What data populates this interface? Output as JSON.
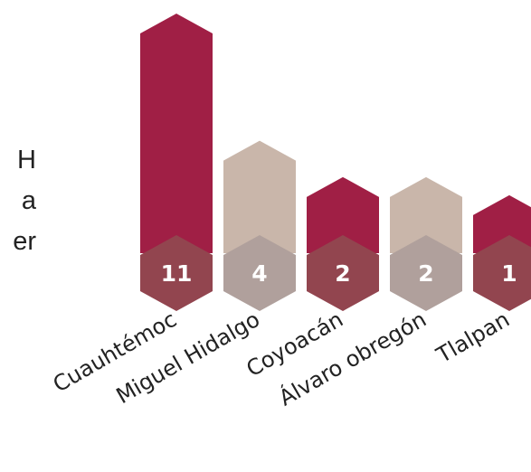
{
  "side_text": [
    "H",
    "a",
    "er"
  ],
  "chart_data": {
    "type": "bar",
    "categories": [
      "Cuauhtémoc",
      "Miguel Hidalgo",
      "Coyoacán",
      "Álvaro obregón",
      "Tlalpan"
    ],
    "values": [
      11,
      4,
      2,
      2,
      1
    ],
    "value_labels": [
      "11",
      "4",
      "2",
      "2",
      "1"
    ],
    "bar_colors": [
      "#a01f45",
      "#c9b6aa",
      "#a01f45",
      "#c9b6aa",
      "#a01f45"
    ],
    "badge_colors": [
      "#92454f",
      "#b0a09c",
      "#92454f",
      "#b0a09c",
      "#92454f"
    ],
    "title": "",
    "xlabel": "",
    "ylabel": "",
    "ylim": [
      0,
      11
    ]
  }
}
